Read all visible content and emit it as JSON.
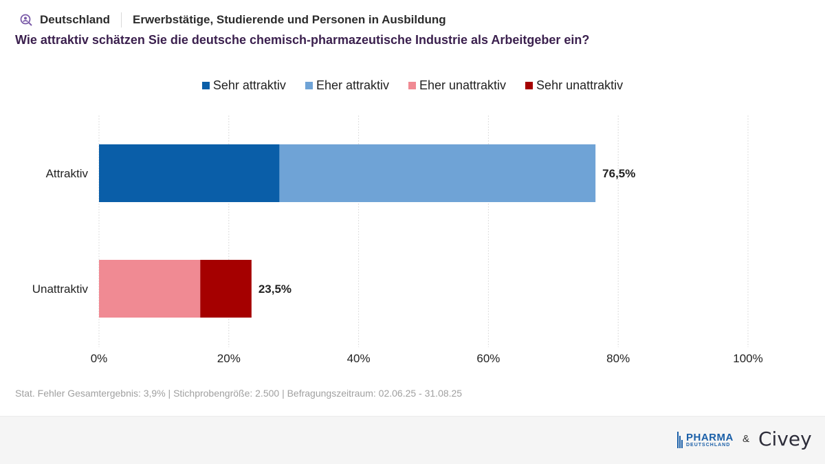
{
  "header": {
    "region": "Deutschland",
    "population": "Erwerbstätige, Studierende und Personen in Ausbildung",
    "question": "Wie attraktiv schätzen Sie die deutsche chemisch-pharmazeutische Industrie als Arbeitgeber ein?"
  },
  "legend": [
    {
      "label": "Sehr attraktiv",
      "color": "#0a5ea8"
    },
    {
      "label": "Eher attraktiv",
      "color": "#6fa3d6"
    },
    {
      "label": "Eher unattraktiv",
      "color": "#f08a93"
    },
    {
      "label": "Sehr unattraktiv",
      "color": "#a50000"
    }
  ],
  "chart_data": {
    "type": "bar",
    "orientation": "horizontal",
    "stacked": true,
    "categories": [
      "Attraktiv",
      "Unattraktiv"
    ],
    "series": [
      {
        "name": "Sehr attraktiv",
        "values": [
          27.8,
          0
        ],
        "color": "#0a5ea8"
      },
      {
        "name": "Eher attraktiv",
        "values": [
          48.7,
          0
        ],
        "color": "#6fa3d6"
      },
      {
        "name": "Eher unattraktiv",
        "values": [
          0,
          15.6
        ],
        "color": "#f08a93"
      },
      {
        "name": "Sehr unattraktiv",
        "values": [
          0,
          7.9
        ],
        "color": "#a50000"
      }
    ],
    "totals": [
      "76,5%",
      "23,5%"
    ],
    "xlim": [
      0,
      100
    ],
    "xticks": [
      "0%",
      "20%",
      "40%",
      "60%",
      "80%",
      "100%"
    ],
    "grid": true,
    "legend_position": "top-center"
  },
  "footer": {
    "note": "Stat. Fehler Gesamtergebnis: 3,9% | Stichprobengröße: 2.500 | Befragungszeitraum: 02.06.25 - 31.08.25",
    "logo_pharma": "PHARMA",
    "logo_pharma_sub": "DEUTSCHLAND",
    "amp": "&",
    "logo_civey": "Civey"
  }
}
